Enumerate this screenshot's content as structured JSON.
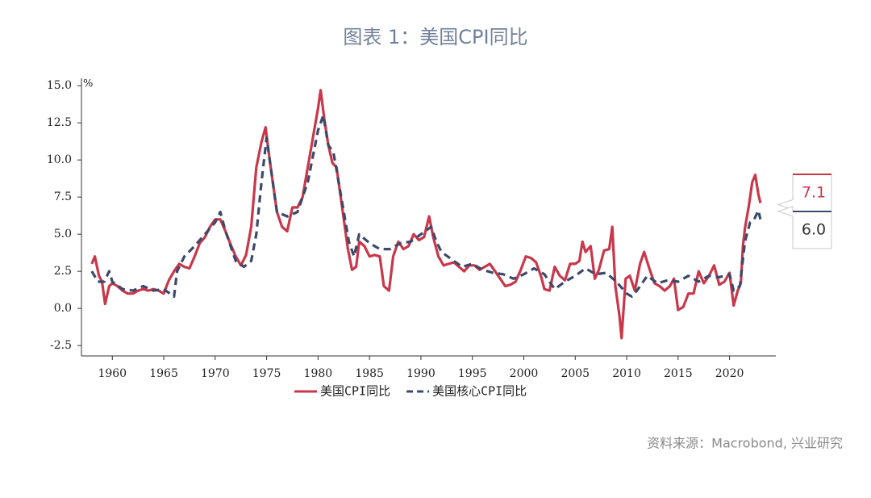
{
  "chart_data": {
    "type": "line",
    "title": "图表 1：美国CPI同比",
    "y_unit": "%",
    "source": "资料来源：Macrobond, 兴业研究",
    "xlim": [
      1957,
      2024.5
    ],
    "xticks": [
      1960,
      1965,
      1970,
      1975,
      1980,
      1985,
      1990,
      1995,
      2000,
      2005,
      2010,
      2015,
      2020
    ],
    "ylim": [
      -3.2,
      15.5
    ],
    "yticks": [
      {
        "value": 15,
        "label": "15.0"
      },
      12.5,
      {
        "value": 10,
        "label": "10.0"
      },
      7.5,
      {
        "value": 5,
        "label": "5.0"
      },
      2.5,
      {
        "value": 0,
        "label": "0.0"
      },
      -2.5
    ],
    "grid": false,
    "legend": "bottom",
    "series": [
      {
        "name": "美国CPI同比",
        "color": "#c8374a",
        "dash": false,
        "end_label": {
          "value": 7.1,
          "label": "7.1"
        },
        "x": [
          1958,
          1958.3,
          1958.7,
          1959,
          1959.3,
          1959.7,
          1960,
          1960.5,
          1961,
          1961.5,
          1962,
          1962.5,
          1963,
          1963.5,
          1964,
          1964.5,
          1965,
          1965.5,
          1966,
          1966.5,
          1967,
          1967.5,
          1968,
          1968.5,
          1969,
          1969.5,
          1970,
          1970.5,
          1971,
          1971.5,
          1972,
          1972.5,
          1973,
          1973.5,
          1974,
          1974.5,
          1974.9,
          1975.3,
          1975.7,
          1976,
          1976.5,
          1977,
          1977.5,
          1978,
          1978.5,
          1979,
          1979.5,
          1980,
          1980.25,
          1980.6,
          1981,
          1981.4,
          1981.8,
          1982.1,
          1982.5,
          1982.9,
          1983.3,
          1983.7,
          1984,
          1984.5,
          1985,
          1985.5,
          1986,
          1986.4,
          1986.9,
          1987.3,
          1987.8,
          1988.3,
          1988.8,
          1989.3,
          1989.8,
          1990.3,
          1990.8,
          1991.2,
          1991.7,
          1992.2,
          1992.7,
          1993.2,
          1993.7,
          1994.2,
          1994.7,
          1995.2,
          1995.7,
          1996.2,
          1996.7,
          1997.2,
          1997.7,
          1998.2,
          1998.7,
          1999.2,
          1999.7,
          2000.2,
          2000.7,
          2001.2,
          2001.7,
          2002,
          2002.5,
          2003,
          2003.5,
          2004,
          2004.5,
          2005,
          2005.4,
          2005.7,
          2006,
          2006.5,
          2006.9,
          2007.3,
          2007.8,
          2008.3,
          2008.6,
          2008.9,
          2009.3,
          2009.5,
          2009.9,
          2010.3,
          2010.8,
          2011.3,
          2011.7,
          2012.2,
          2012.7,
          2013.2,
          2013.7,
          2014.2,
          2014.6,
          2015,
          2015.5,
          2016,
          2016.5,
          2017,
          2017.5,
          2018,
          2018.5,
          2019,
          2019.5,
          2020,
          2020.4,
          2020.8,
          2021.1,
          2021.3,
          2021.5,
          2021.9,
          2022.2,
          2022.5,
          2022.8,
          2023
        ],
        "values": [
          3.0,
          3.5,
          2.2,
          1.8,
          0.3,
          1.5,
          1.7,
          1.5,
          1.2,
          1.0,
          1.0,
          1.2,
          1.3,
          1.2,
          1.3,
          1.2,
          1.0,
          1.9,
          2.5,
          3.0,
          2.8,
          2.7,
          3.5,
          4.4,
          4.8,
          5.5,
          6.0,
          6.0,
          5.2,
          4.3,
          3.5,
          2.9,
          3.6,
          5.5,
          9.5,
          11.2,
          12.2,
          10.0,
          8.0,
          6.5,
          5.5,
          5.2,
          6.8,
          6.8,
          7.5,
          9.5,
          11.5,
          13.5,
          14.7,
          12.8,
          11.0,
          9.8,
          9.5,
          8.0,
          6.0,
          4.0,
          2.6,
          2.8,
          4.5,
          4.2,
          3.5,
          3.6,
          3.5,
          1.5,
          1.2,
          3.5,
          4.5,
          4.0,
          4.2,
          5.0,
          4.6,
          4.8,
          6.2,
          4.8,
          3.5,
          2.9,
          3.0,
          3.1,
          2.8,
          2.5,
          2.9,
          2.9,
          2.6,
          2.8,
          3.0,
          2.5,
          2.0,
          1.5,
          1.6,
          1.8,
          2.6,
          3.5,
          3.4,
          3.1,
          2.1,
          1.3,
          1.2,
          2.8,
          2.2,
          1.9,
          3.0,
          3.0,
          3.2,
          4.5,
          3.8,
          4.2,
          2.0,
          2.6,
          3.9,
          4.0,
          5.5,
          1.5,
          -0.5,
          -2.0,
          2.0,
          2.2,
          1.2,
          3.0,
          3.8,
          2.7,
          1.7,
          1.5,
          1.2,
          1.5,
          2.0,
          -0.1,
          0.1,
          1.0,
          1.0,
          2.5,
          1.7,
          2.2,
          2.9,
          1.6,
          1.8,
          2.4,
          0.2,
          1.2,
          1.7,
          4.2,
          5.4,
          7.0,
          8.5,
          9.0,
          7.7,
          7.1
        ]
      },
      {
        "name": "美国核心CPI同比",
        "color": "#3b4a6b",
        "dash": true,
        "end_label": {
          "value": 6,
          "label": "6.0"
        },
        "x": [
          1958,
          1958.6,
          1959.2,
          1959.7,
          1960,
          1961,
          1962,
          1963,
          1964,
          1965,
          1966,
          1966.3,
          1967,
          1968,
          1969,
          1970,
          1970.5,
          1971,
          1972,
          1972.8,
          1973.5,
          1974,
          1974.5,
          1975,
          1975.5,
          1976,
          1977,
          1978,
          1979,
          1980,
          1980.5,
          1981,
          1981.5,
          1982,
          1982.5,
          1983,
          1983.5,
          1984,
          1985,
          1986,
          1987,
          1988,
          1989,
          1990,
          1991,
          1991.5,
          1992,
          1993,
          1994,
          1995,
          1996,
          1997,
          1998,
          1999,
          2000,
          2001,
          2002,
          2003,
          2004,
          2005,
          2006,
          2007,
          2008,
          2009,
          2010,
          2010.5,
          2011,
          2012,
          2013,
          2014,
          2015,
          2016,
          2017,
          2018,
          2019,
          2020,
          2020.4,
          2021,
          2021.5,
          2022,
          2022.4,
          2022.8,
          2023
        ],
        "values": [
          2.5,
          1.8,
          1.8,
          2.5,
          1.8,
          1.3,
          1.2,
          1.5,
          1.2,
          1.3,
          0.8,
          2.5,
          3.5,
          4.2,
          5.0,
          5.8,
          6.5,
          5.2,
          3.2,
          2.8,
          3.2,
          5.0,
          8.5,
          11.5,
          9.0,
          6.5,
          6.2,
          6.5,
          8.5,
          12.0,
          13.0,
          11.0,
          10.5,
          8.5,
          6.5,
          4.5,
          3.5,
          5.0,
          4.4,
          4.0,
          4.0,
          4.4,
          4.5,
          5.0,
          5.5,
          4.5,
          3.8,
          3.3,
          2.8,
          3.0,
          2.6,
          2.4,
          2.3,
          2.0,
          2.3,
          2.7,
          2.3,
          1.3,
          1.8,
          2.2,
          2.7,
          2.3,
          2.4,
          1.8,
          1.0,
          0.8,
          1.2,
          2.2,
          1.7,
          1.9,
          1.8,
          2.2,
          1.8,
          2.2,
          2.1,
          2.3,
          1.2,
          1.5,
          4.5,
          5.8,
          6.0,
          6.6,
          6.0
        ]
      }
    ]
  }
}
